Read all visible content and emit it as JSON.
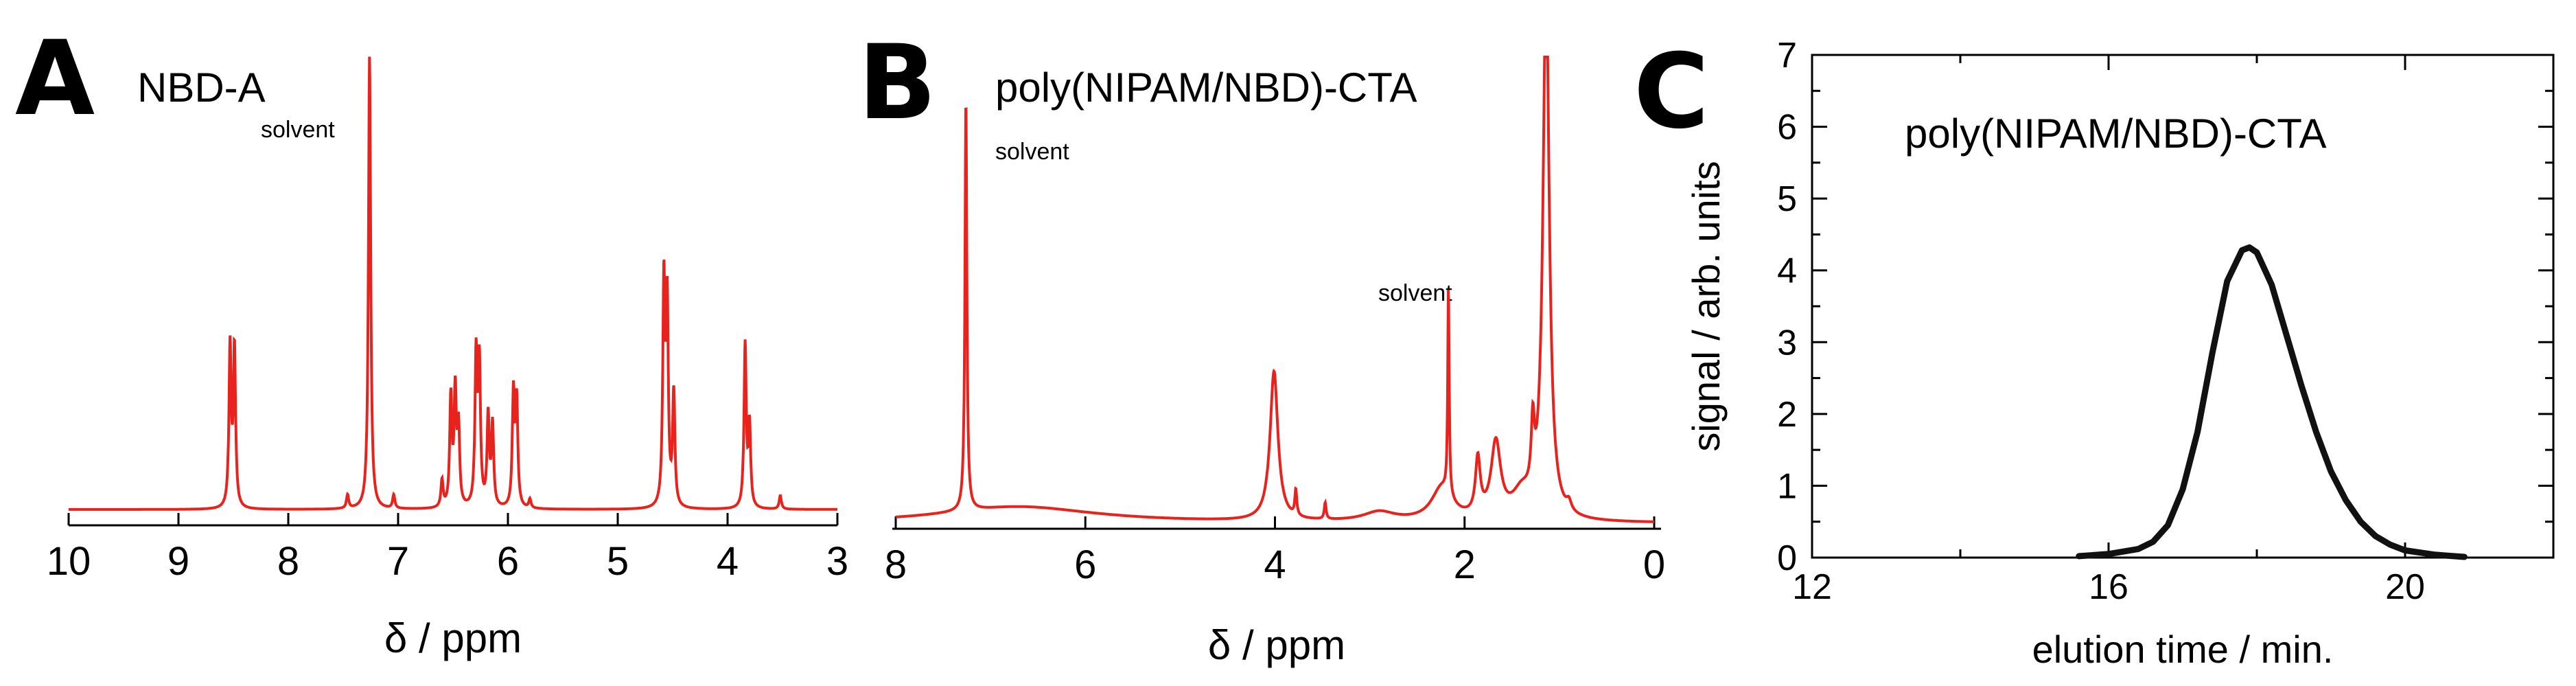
{
  "chart_data": [
    {
      "type": "line",
      "panel": "A",
      "title": "NBD-A",
      "xlabel": "δ / ppm",
      "ylabel": "",
      "xlim": [
        10,
        3
      ],
      "x_reversed": true,
      "x_ticks": [
        "10",
        "9",
        "8",
        "7",
        "6",
        "5",
        "4",
        "3"
      ],
      "y_axis_shown": false,
      "line_color": "#e8231e",
      "annotations": [
        {
          "text": "solvent",
          "x": 7.26
        }
      ],
      "peaks": [
        {
          "x": 8.53,
          "y": 0.355
        },
        {
          "x": 8.49,
          "y": 0.35
        },
        {
          "x": 7.46,
          "y": 0.03
        },
        {
          "x": 7.26,
          "y": 1.0
        },
        {
          "x": 7.04,
          "y": 0.03
        },
        {
          "x": 6.6,
          "y": 0.06
        },
        {
          "x": 6.52,
          "y": 0.24
        },
        {
          "x": 6.48,
          "y": 0.25
        },
        {
          "x": 6.45,
          "y": 0.17
        },
        {
          "x": 6.29,
          "y": 0.33
        },
        {
          "x": 6.26,
          "y": 0.31
        },
        {
          "x": 6.18,
          "y": 0.2
        },
        {
          "x": 6.14,
          "y": 0.18
        },
        {
          "x": 5.95,
          "y": 0.25
        },
        {
          "x": 5.92,
          "y": 0.23
        },
        {
          "x": 5.8,
          "y": 0.02
        },
        {
          "x": 4.58,
          "y": 0.49
        },
        {
          "x": 4.55,
          "y": 0.44
        },
        {
          "x": 4.49,
          "y": 0.25
        },
        {
          "x": 3.84,
          "y": 0.36
        },
        {
          "x": 3.8,
          "y": 0.18
        },
        {
          "x": 3.52,
          "y": 0.03
        }
      ]
    },
    {
      "type": "line",
      "panel": "B",
      "title": "poly(NIPAM/NBD)-CTA",
      "xlabel": "δ / ppm",
      "ylabel": "",
      "xlim": [
        8,
        0
      ],
      "x_reversed": true,
      "x_ticks": [
        "8",
        "6",
        "4",
        "2",
        "0"
      ],
      "y_axis_shown": false,
      "line_color": "#e8231e",
      "annotations": [
        {
          "text": "solvent",
          "x": 7.26,
          "position": "below-right of peak top"
        },
        {
          "text": "solvent",
          "x": 2.17,
          "position": "above peak"
        }
      ],
      "peaks": [
        {
          "x": 7.26,
          "y": 0.88,
          "w": 0.012
        },
        {
          "x": 6.7,
          "y": 0.035,
          "w": 1.0
        },
        {
          "x": 4.01,
          "y": 0.32,
          "w": 0.05
        },
        {
          "x": 3.78,
          "y": 0.055,
          "w": 0.012
        },
        {
          "x": 3.47,
          "y": 0.035,
          "w": 0.012
        },
        {
          "x": 2.9,
          "y": 0.02,
          "w": 0.2
        },
        {
          "x": 2.24,
          "y": 0.07,
          "w": 0.13
        },
        {
          "x": 2.17,
          "y": 0.44,
          "w": 0.009
        },
        {
          "x": 1.86,
          "y": 0.12,
          "w": 0.03
        },
        {
          "x": 1.67,
          "y": 0.16,
          "w": 0.06
        },
        {
          "x": 1.4,
          "y": 0.05,
          "w": 0.12
        },
        {
          "x": 1.28,
          "y": 0.14,
          "w": 0.02
        },
        {
          "x": 1.14,
          "y": 1.15,
          "w": 0.04
        },
        {
          "x": 0.9,
          "y": 0.02,
          "w": 0.03
        }
      ]
    },
    {
      "type": "line",
      "panel": "C",
      "title": "poly(NIPAM/NBD)-CTA",
      "xlabel": "elution time / min.",
      "ylabel": "signal / arb. units",
      "xlim": [
        12,
        22
      ],
      "ylim": [
        0,
        7
      ],
      "x_ticks": [
        "12",
        "16",
        "20"
      ],
      "y_ticks": [
        "0",
        "1",
        "2",
        "3",
        "4",
        "5",
        "6",
        "7"
      ],
      "line_color": "#111111",
      "series": [
        {
          "x": [
            15.6,
            16.0,
            16.4,
            16.6,
            16.8,
            17.0,
            17.2,
            17.4,
            17.6,
            17.8,
            17.9,
            18.0,
            18.2,
            18.4,
            18.6,
            18.8,
            19.0,
            19.2,
            19.4,
            19.6,
            19.8,
            20.0,
            20.4,
            20.8
          ],
          "y": [
            0.02,
            0.05,
            0.12,
            0.22,
            0.45,
            0.95,
            1.75,
            2.85,
            3.85,
            4.28,
            4.32,
            4.25,
            3.8,
            3.1,
            2.4,
            1.75,
            1.2,
            0.8,
            0.5,
            0.3,
            0.18,
            0.1,
            0.04,
            0.01
          ]
        }
      ]
    }
  ],
  "panel_letters": [
    "A",
    "B",
    "C"
  ]
}
